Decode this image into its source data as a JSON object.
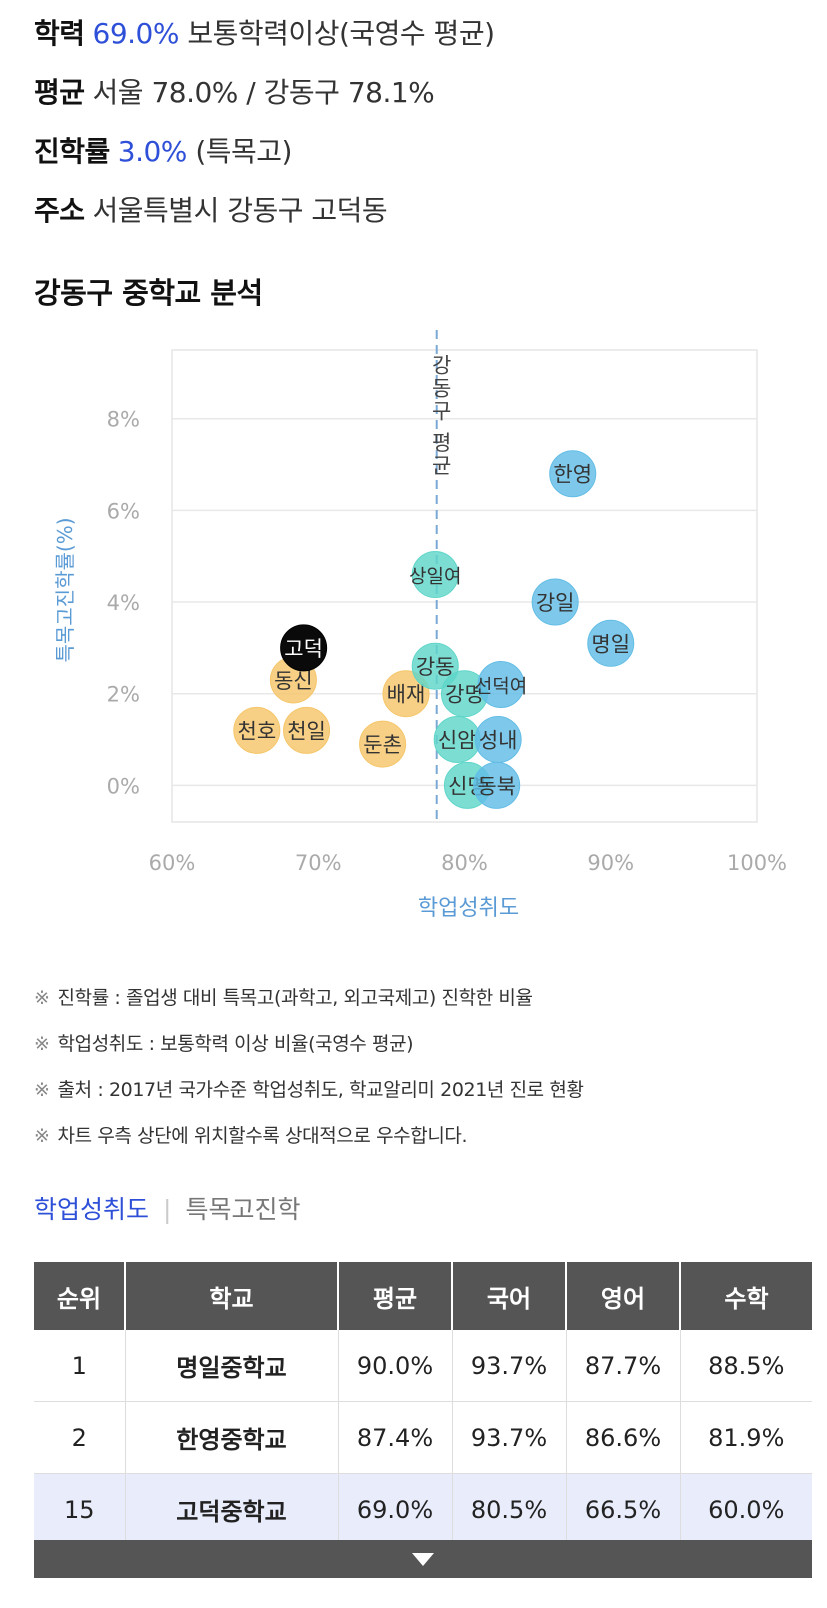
{
  "info": {
    "academic": {
      "label": "학력",
      "value": "69.0%",
      "text": "보통학력이상(국영수 평균)"
    },
    "average": {
      "label": "평균",
      "text": "서울 78.0% / 강동구 78.1%"
    },
    "advancement": {
      "label": "진학률",
      "value": "3.0%",
      "text": "(특목고)"
    },
    "address": {
      "label": "주소",
      "text": "서울특별시 강동구 고덕동"
    }
  },
  "section_title": "강동구 중학교 분석",
  "chart_data": {
    "type": "scatter",
    "title": "",
    "xlabel": "학업성취도",
    "ylabel": "특목고진학률(%)",
    "xlim": [
      60,
      100
    ],
    "ylim": [
      -0.8,
      9.5
    ],
    "x_ticks": [
      "60%",
      "70%",
      "80%",
      "90%",
      "100%"
    ],
    "x_tick_values": [
      60,
      70,
      80,
      90,
      100
    ],
    "y_ticks": [
      "0%",
      "2%",
      "4%",
      "6%",
      "8%"
    ],
    "y_tick_values": [
      0,
      2,
      4,
      6,
      8
    ],
    "grid": true,
    "reference_line": {
      "label": "강동구 평균",
      "x": 78.1
    },
    "colors": {
      "below": "#f5c66a",
      "near": "#5fd6c9",
      "above": "#62bde6",
      "highlight": "#0a0a0a",
      "reference": "#7aa9d6",
      "axis_label": "#5b9bd5"
    },
    "points": [
      {
        "name": "한영",
        "x": 87.4,
        "y": 6.8,
        "group": "above"
      },
      {
        "name": "강일",
        "x": 86.2,
        "y": 4.0,
        "group": "above"
      },
      {
        "name": "명일",
        "x": 90.0,
        "y": 3.1,
        "group": "above"
      },
      {
        "name": "천호",
        "x": 65.8,
        "y": 1.2,
        "group": "below"
      },
      {
        "name": "천일",
        "x": 69.2,
        "y": 1.2,
        "group": "below"
      },
      {
        "name": "동신",
        "x": 68.3,
        "y": 2.3,
        "group": "below"
      },
      {
        "name": "배재",
        "x": 76.0,
        "y": 2.0,
        "group": "below"
      },
      {
        "name": "둔촌",
        "x": 74.4,
        "y": 0.9,
        "group": "below"
      },
      {
        "name": "상일여",
        "x": 78.0,
        "y": 4.6,
        "group": "near"
      },
      {
        "name": "강동",
        "x": 78.0,
        "y": 2.6,
        "group": "near"
      },
      {
        "name": "강명",
        "x": 80.0,
        "y": 2.0,
        "group": "near"
      },
      {
        "name": "신암",
        "x": 79.5,
        "y": 1.0,
        "group": "near"
      },
      {
        "name": "신명",
        "x": 80.2,
        "y": 0.0,
        "group": "near"
      },
      {
        "name": "선덕여",
        "x": 82.5,
        "y": 2.2,
        "group": "above"
      },
      {
        "name": "성내",
        "x": 82.3,
        "y": 1.0,
        "group": "above"
      },
      {
        "name": "동북",
        "x": 82.2,
        "y": 0.0,
        "group": "above"
      },
      {
        "name": "고덕",
        "x": 69.0,
        "y": 3.0,
        "group": "highlight"
      }
    ]
  },
  "notes": [
    "진학률 : 졸업생 대비 특목고(과학고, 외고국제고) 진학한 비율",
    "학업성취도 : 보통학력 이상 비율(국영수 평균)",
    "출처 : 2017년 국가수준 학업성취도, 학교알리미 2021년 진로 현황",
    "차트 우측 상단에 위치할수록 상대적으로 우수합니다."
  ],
  "note_mark": "※",
  "tabs": [
    "학업성취도",
    "특목고진학"
  ],
  "tab_separator": "|",
  "table": {
    "headers": [
      "순위",
      "학교",
      "평균",
      "국어",
      "영어",
      "수학"
    ],
    "rows": [
      {
        "rank": "1",
        "school": "명일중학교",
        "avg": "90.0%",
        "kor": "93.7%",
        "eng": "87.7%",
        "math": "88.5%"
      },
      {
        "rank": "2",
        "school": "한영중학교",
        "avg": "87.4%",
        "kor": "93.7%",
        "eng": "86.6%",
        "math": "81.9%"
      },
      {
        "rank": "15",
        "school": "고덕중학교",
        "avg": "69.0%",
        "kor": "80.5%",
        "eng": "66.5%",
        "math": "60.0%"
      }
    ]
  }
}
